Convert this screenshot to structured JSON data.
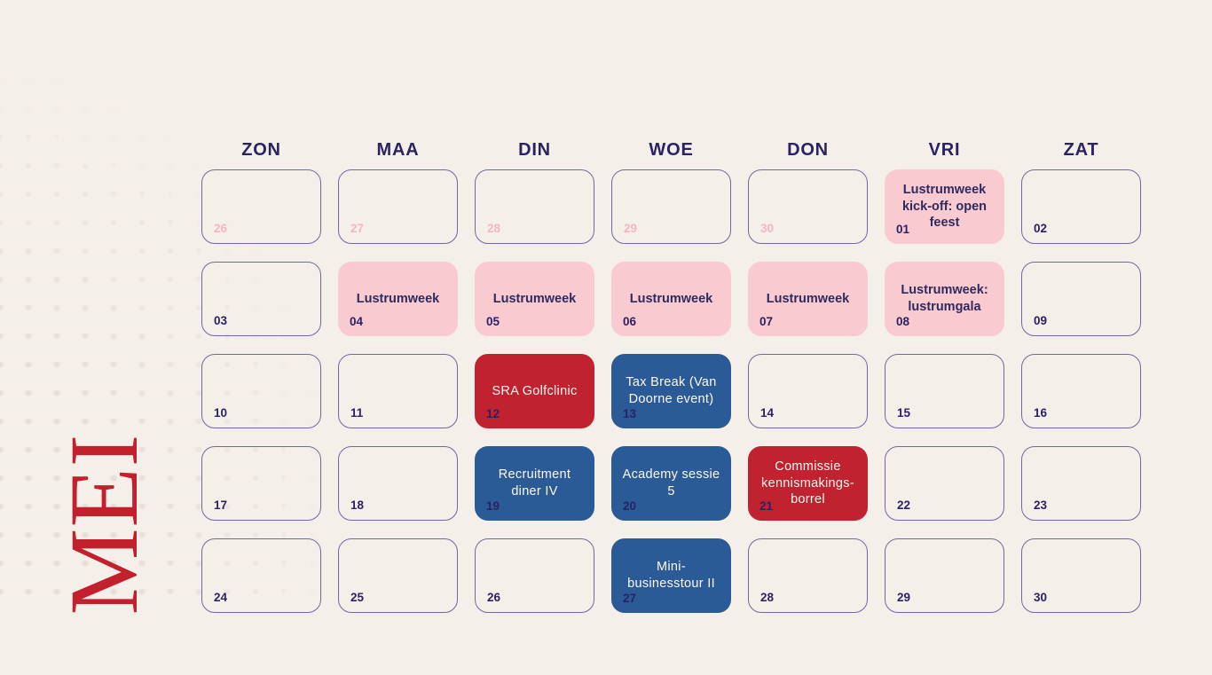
{
  "month": {
    "title": "MEI"
  },
  "weekdays": [
    "ZON",
    "MAA",
    "DIN",
    "WOE",
    "DON",
    "VRI",
    "ZAT"
  ],
  "colors": {
    "background": "#f5efe9",
    "navy_text": "#2a2262",
    "cell_border": "#6e69a0",
    "event_pink": "#f9cbd1",
    "event_red": "#c1222f",
    "event_blue": "#2b5b97",
    "muted_day_pink": "#f6b6c0",
    "month_title_red": "#c2202d",
    "event_light_text": "#fcf7f3"
  },
  "cells": [
    {
      "day": "26",
      "variant": "empty",
      "muted": true
    },
    {
      "day": "27",
      "variant": "empty",
      "muted": true
    },
    {
      "day": "28",
      "variant": "empty",
      "muted": true
    },
    {
      "day": "29",
      "variant": "empty",
      "muted": true
    },
    {
      "day": "30",
      "variant": "empty",
      "muted": true
    },
    {
      "day": "01",
      "variant": "pink",
      "event": "Lustrumweek\nkick-off: open\nfeest"
    },
    {
      "day": "02",
      "variant": "empty"
    },
    {
      "day": "03",
      "variant": "empty"
    },
    {
      "day": "04",
      "variant": "pink",
      "event": "Lustrumweek"
    },
    {
      "day": "05",
      "variant": "pink",
      "event": "Lustrumweek"
    },
    {
      "day": "06",
      "variant": "pink",
      "event": "Lustrumweek"
    },
    {
      "day": "07",
      "variant": "pink",
      "event": "Lustrumweek"
    },
    {
      "day": "08",
      "variant": "pink",
      "event": "Lustrumweek:\nlustrumgala"
    },
    {
      "day": "09",
      "variant": "empty"
    },
    {
      "day": "10",
      "variant": "empty"
    },
    {
      "day": "11",
      "variant": "empty"
    },
    {
      "day": "12",
      "variant": "red",
      "event": "SRA Golfclinic"
    },
    {
      "day": "13",
      "variant": "blue",
      "event": "Tax Break (Van\nDoorne event)"
    },
    {
      "day": "14",
      "variant": "empty"
    },
    {
      "day": "15",
      "variant": "empty"
    },
    {
      "day": "16",
      "variant": "empty"
    },
    {
      "day": "17",
      "variant": "empty"
    },
    {
      "day": "18",
      "variant": "empty"
    },
    {
      "day": "19",
      "variant": "blue",
      "event": "Recruitment\ndiner IV"
    },
    {
      "day": "20",
      "variant": "blue",
      "event": "Academy sessie\n5"
    },
    {
      "day": "21",
      "variant": "red",
      "event": "Commissie\nkennismakings-\nborrel"
    },
    {
      "day": "22",
      "variant": "empty"
    },
    {
      "day": "23",
      "variant": "empty"
    },
    {
      "day": "24",
      "variant": "empty"
    },
    {
      "day": "25",
      "variant": "empty"
    },
    {
      "day": "26",
      "variant": "empty"
    },
    {
      "day": "27",
      "variant": "blue",
      "event": "Mini-\nbusinesstour II"
    },
    {
      "day": "28",
      "variant": "empty"
    },
    {
      "day": "29",
      "variant": "empty"
    },
    {
      "day": "30",
      "variant": "empty"
    }
  ]
}
